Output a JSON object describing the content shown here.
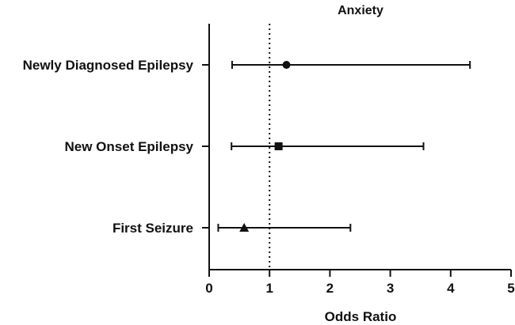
{
  "chart_data": {
    "type": "forest",
    "title": "Anxiety",
    "xlabel": "Odds Ratio",
    "ylabel": "",
    "xlim": [
      0,
      5
    ],
    "x_ticks": [
      0,
      1,
      2,
      3,
      4,
      5
    ],
    "x_tick_labels": [
      "0",
      "1",
      "2",
      "3",
      "4",
      "5"
    ],
    "reference_line": 1,
    "grid": false,
    "categories": [
      "Newly Diagnosed Epilepsy",
      "New Onset Epilepsy",
      "First Seizure"
    ],
    "estimates": [
      {
        "label": "Newly Diagnosed Epilepsy",
        "or": 1.28,
        "ci_low": 0.38,
        "ci_high": 4.32,
        "marker": "circle"
      },
      {
        "label": "New Onset Epilepsy",
        "or": 1.15,
        "ci_low": 0.37,
        "ci_high": 3.55,
        "marker": "square"
      },
      {
        "label": "First Seizure",
        "or": 0.58,
        "ci_low": 0.15,
        "ci_high": 2.34,
        "marker": "triangle"
      }
    ],
    "colors": {
      "ink": "#111111"
    }
  }
}
